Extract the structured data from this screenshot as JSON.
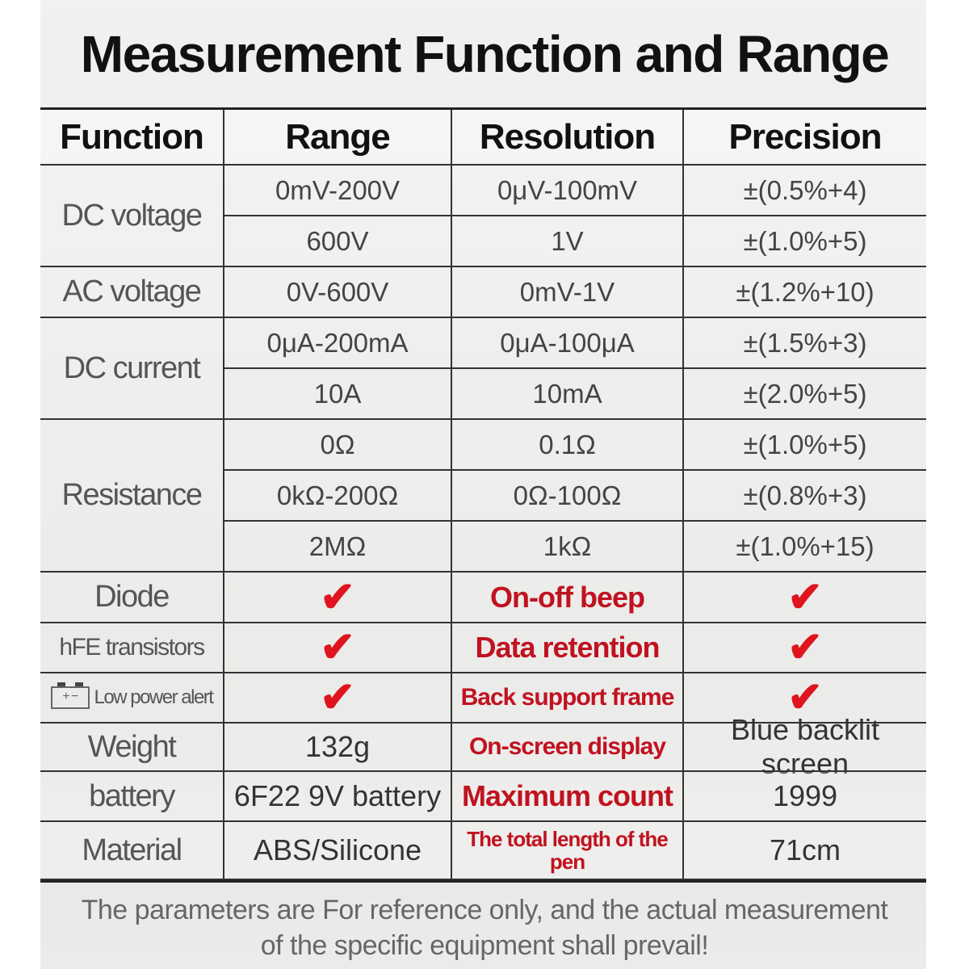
{
  "title": "Measurement Function and Range",
  "headers": [
    "Function",
    "Range",
    "Resolution",
    "Precision"
  ],
  "functions": [
    {
      "label": "DC voltage",
      "rows": 2
    },
    {
      "label": "AC voltage",
      "rows": 1
    },
    {
      "label": "DC current",
      "rows": 2
    },
    {
      "label": "Resistance",
      "rows": 3
    },
    {
      "label": "Diode",
      "rows": 1
    },
    {
      "label": "hFE transistors",
      "rows": 1
    },
    {
      "label": "Low power alert",
      "rows": 1,
      "icon": "battery-icon"
    },
    {
      "label": "Weight",
      "rows": 1
    },
    {
      "label": "battery",
      "rows": 1
    },
    {
      "label": "Material",
      "rows": 1
    }
  ],
  "rows": [
    [
      "0mV-200V",
      "0μV-100mV",
      "±(0.5%+4)"
    ],
    [
      "600V",
      "1V",
      "±(1.0%+5)"
    ],
    [
      "0V-600V",
      "0mV-1V",
      "±(1.2%+10)"
    ],
    [
      "0μA-200mA",
      "0μA-100μA",
      "±(1.5%+3)"
    ],
    [
      "10A",
      "10mA",
      "±(2.0%+5)"
    ],
    [
      "0Ω",
      "0.1Ω",
      "±(1.0%+5)"
    ],
    [
      "0kΩ-200Ω",
      "0Ω-100Ω",
      "±(0.8%+3)"
    ],
    [
      "2MΩ",
      "1kΩ",
      "±(1.0%+15)"
    ],
    [
      "✔",
      "On-off beep",
      "✔"
    ],
    [
      "✔",
      "Data retention",
      "✔"
    ],
    [
      "✔",
      "Back support frame",
      "✔"
    ],
    [
      "132g",
      "On-screen display",
      "Blue backlit screen"
    ],
    [
      "6F22 9V battery",
      "Maximum count",
      "1999"
    ],
    [
      "ABS/Silicone",
      "The total length of the pen",
      "71cm"
    ]
  ],
  "battery_icon_text": "+ −",
  "check_color": "#e0141e",
  "highlight_color": "#c1121f",
  "footer": [
    "The parameters are For reference only, and the actual measurement",
    "of the specific equipment shall prevail!"
  ]
}
